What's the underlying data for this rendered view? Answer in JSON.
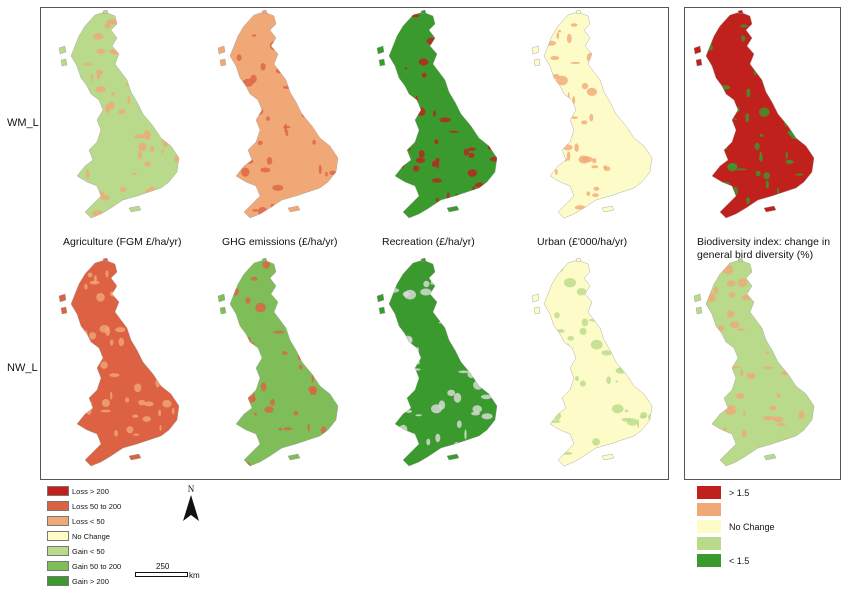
{
  "rows": [
    "WM_L",
    "NW_L"
  ],
  "columns": [
    "Agriculture (FGM £/ha/yr)",
    "GHG emissions (£/ha/yr)",
    "Recreation (£/ha/yr)",
    "Urban (£'000/ha/yr)",
    "Biodiversity index: change in general bird diversity (%)"
  ],
  "legend": {
    "items": [
      {
        "label": "Loss > 200",
        "color": "#c0211c"
      },
      {
        "label": "Loss 50 to 200",
        "color": "#dd6143"
      },
      {
        "label": "Loss < 50",
        "color": "#f1a877"
      },
      {
        "label": "No Change",
        "color": "#fdfcc8"
      },
      {
        "label": "Gain < 50",
        "color": "#b9da8b"
      },
      {
        "label": "Gain 50 to 200",
        "color": "#7fbd59"
      },
      {
        "label": "Gain > 200",
        "color": "#3a9a2e"
      }
    ]
  },
  "bio_legend": {
    "items": [
      {
        "label": "> 1.5",
        "color": "#c0211c"
      },
      {
        "label": "",
        "color": "#f1a877"
      },
      {
        "label": "No Change",
        "color": "#fdfcc8"
      },
      {
        "label": "",
        "color": "#b9da8b"
      },
      {
        "label": "< 1.5",
        "color": "#3a9a2e"
      }
    ]
  },
  "north_arrow": {
    "label": "N",
    "icon": "north-arrow-icon"
  },
  "scalebar": {
    "value": "250",
    "unit": "km"
  },
  "map_fills": [
    [
      "#b9da8b",
      "#f1a877",
      "#3a9a2e",
      "#fdfcc8",
      "#c0211c"
    ],
    [
      "#dd6143",
      "#7fbd59",
      "#3a9a2e",
      "#fdfcc8",
      "#b9da8b"
    ]
  ],
  "map_accents": [
    [
      "#f1a877",
      "#dd6143",
      "#c0211c",
      "#f1a877",
      "#3a9a2e"
    ],
    [
      "#f1a877",
      "#dd6143",
      "#dddddd",
      "#b9da8b",
      "#f1a877"
    ]
  ]
}
